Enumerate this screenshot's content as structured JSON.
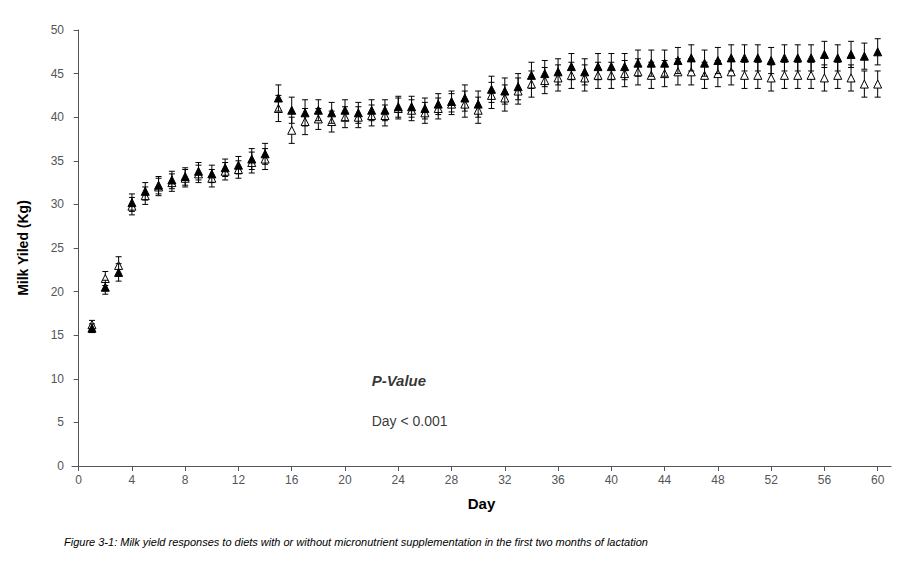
{
  "chart_data": {
    "type": "scatter",
    "xlabel": "Day",
    "ylabel": "Milk Yiled (Kg)",
    "caption": "Figure 3-1: Milk yield responses to diets with or without micronutrient supplementation in the first two months of lactation",
    "xlim": [
      -0.5,
      61
    ],
    "ylim": [
      0,
      50
    ],
    "xticks": [
      0,
      4,
      8,
      12,
      16,
      20,
      24,
      28,
      32,
      36,
      40,
      44,
      48,
      52,
      56,
      60
    ],
    "yticks": [
      0,
      5,
      10,
      15,
      20,
      25,
      30,
      35,
      40,
      45,
      50
    ],
    "grid": false,
    "annotations": [
      {
        "text": "P-Value",
        "x": 22,
        "y": 9
      },
      {
        "text": "Day < 0.001",
        "x": 22,
        "y": 6
      }
    ],
    "x": [
      1,
      2,
      3,
      4,
      5,
      6,
      7,
      8,
      9,
      10,
      11,
      12,
      13,
      14,
      15,
      16,
      17,
      18,
      19,
      20,
      21,
      22,
      23,
      24,
      25,
      26,
      27,
      28,
      29,
      30,
      31,
      32,
      33,
      34,
      35,
      36,
      37,
      38,
      39,
      40,
      41,
      42,
      43,
      44,
      45,
      46,
      47,
      48,
      49,
      50,
      51,
      52,
      53,
      54,
      55,
      56,
      57,
      58,
      59,
      60
    ],
    "series": [
      {
        "color": "#000000",
        "marker": "triangle",
        "values": [
          15.8,
          20.5,
          22.2,
          30.2,
          31.5,
          32.2,
          32.8,
          33.2,
          33.8,
          33.5,
          34.2,
          34.5,
          35.2,
          35.8,
          42.2,
          40.8,
          40.5,
          40.8,
          40.5,
          40.8,
          40.5,
          40.8,
          40.8,
          41.2,
          41.2,
          41.0,
          41.5,
          41.8,
          42.2,
          41.5,
          43.2,
          43.0,
          43.5,
          44.8,
          45.0,
          45.2,
          45.8,
          45.2,
          45.8,
          45.8,
          45.8,
          46.2,
          46.2,
          46.2,
          46.5,
          46.8,
          46.2,
          46.5,
          46.8,
          46.8,
          46.8,
          46.5,
          46.8,
          46.8,
          46.8,
          47.2,
          46.8,
          47.2,
          47.0,
          47.5
        ],
        "errors": [
          0.5,
          0.8,
          1.0,
          1.0,
          1.0,
          1.0,
          1.0,
          1.0,
          1.0,
          1.0,
          1.0,
          1.0,
          1.2,
          1.2,
          1.5,
          1.5,
          1.5,
          1.2,
          1.2,
          1.2,
          1.2,
          1.2,
          1.2,
          1.2,
          1.2,
          1.2,
          1.2,
          1.2,
          1.5,
          1.5,
          1.5,
          1.5,
          1.5,
          1.5,
          1.5,
          1.5,
          1.5,
          1.5,
          1.5,
          1.5,
          1.5,
          1.5,
          1.5,
          1.5,
          1.5,
          1.5,
          1.5,
          1.5,
          1.5,
          1.5,
          1.5,
          1.5,
          1.5,
          1.5,
          1.5,
          1.5,
          1.5,
          1.5,
          1.5,
          1.5
        ]
      },
      {
        "color": "#000000",
        "marker": "triangle-open",
        "values": [
          16.2,
          21.5,
          23.0,
          29.8,
          31.0,
          32.0,
          32.5,
          33.0,
          33.5,
          33.0,
          33.8,
          34.0,
          34.8,
          35.2,
          41.0,
          38.5,
          39.5,
          39.8,
          39.5,
          40.0,
          40.0,
          40.2,
          40.2,
          41.0,
          40.8,
          40.5,
          41.0,
          41.5,
          41.5,
          40.8,
          42.5,
          42.2,
          43.0,
          43.8,
          44.2,
          44.5,
          44.8,
          44.5,
          44.8,
          44.8,
          45.0,
          45.2,
          44.8,
          45.0,
          45.2,
          45.2,
          44.8,
          45.0,
          45.2,
          44.8,
          44.8,
          44.5,
          44.8,
          44.8,
          44.8,
          44.5,
          44.8,
          44.5,
          43.8,
          43.8
        ],
        "errors": [
          0.5,
          0.8,
          1.0,
          1.0,
          1.0,
          1.0,
          1.0,
          1.0,
          1.0,
          1.0,
          1.0,
          1.0,
          1.2,
          1.2,
          1.5,
          1.5,
          1.5,
          1.2,
          1.2,
          1.2,
          1.2,
          1.2,
          1.2,
          1.2,
          1.2,
          1.2,
          1.2,
          1.2,
          1.5,
          1.5,
          1.5,
          1.5,
          1.5,
          1.5,
          1.5,
          1.5,
          1.5,
          1.5,
          1.5,
          1.5,
          1.5,
          1.5,
          1.5,
          1.5,
          1.5,
          1.5,
          1.5,
          1.5,
          1.5,
          1.5,
          1.5,
          1.5,
          1.5,
          1.5,
          1.5,
          1.5,
          1.5,
          1.5,
          1.5,
          1.5
        ]
      }
    ]
  }
}
